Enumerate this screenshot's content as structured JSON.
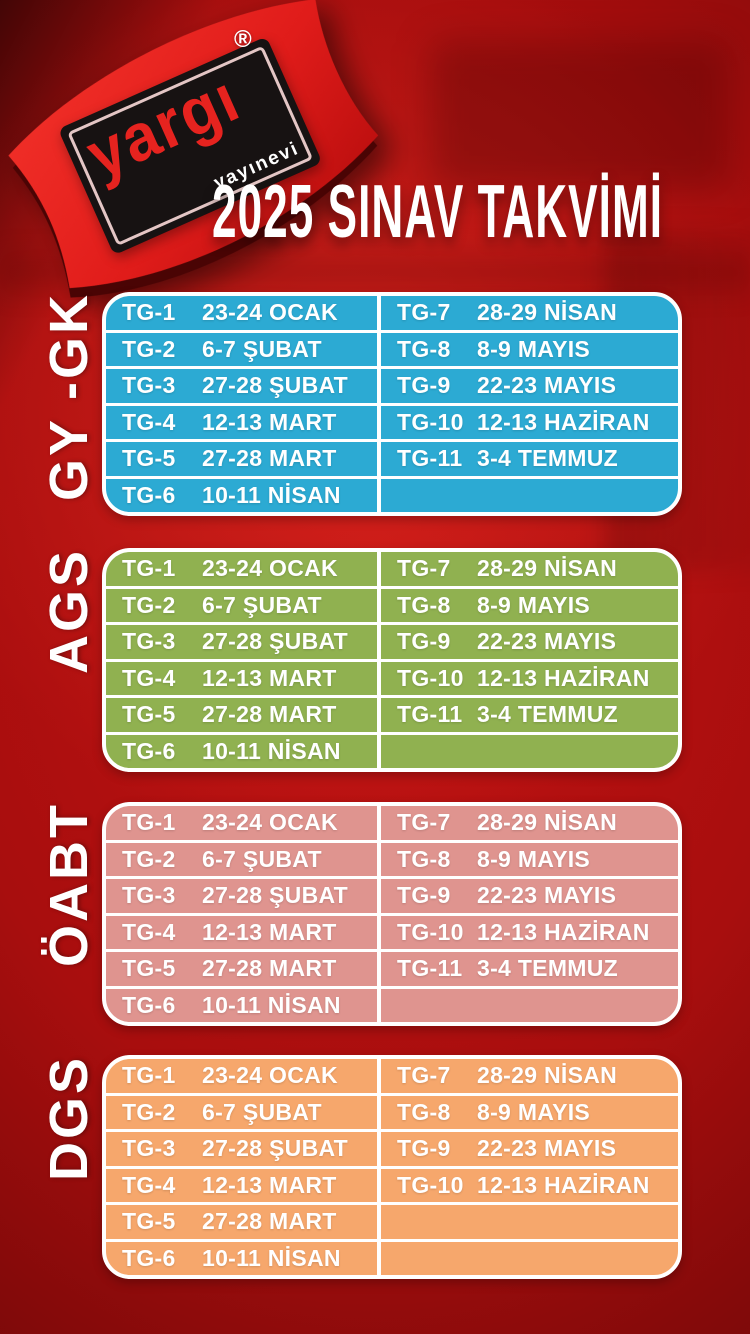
{
  "page": {
    "title": "2025 SINAV TAKVİMİ"
  },
  "logo": {
    "brand": "yargı",
    "subtitle": "yayınevi",
    "registered": "®"
  },
  "colors": {
    "background_red": "#a80e0e",
    "logo_red": "#e6231f",
    "table_blue": "#2caad3",
    "table_green": "#90b150",
    "table_salmon": "#df948f",
    "table_orange": "#f6a76c",
    "grid_white": "#ffffff"
  },
  "sections": [
    {
      "id": "gy-gk",
      "label": "GY -GK",
      "color": "#2caad3",
      "left_rows": [
        {
          "tg": "TG-1",
          "date": "23-24 OCAK"
        },
        {
          "tg": "TG-2",
          "date": "6-7 ŞUBAT"
        },
        {
          "tg": "TG-3",
          "date": "27-28 ŞUBAT"
        },
        {
          "tg": "TG-4",
          "date": "12-13 MART"
        },
        {
          "tg": "TG-5",
          "date": "27-28 MART"
        },
        {
          "tg": "TG-6",
          "date": "10-11 NİSAN"
        }
      ],
      "right_rows": [
        {
          "tg": "TG-7",
          "date": "28-29 NİSAN"
        },
        {
          "tg": "TG-8",
          "date": "8-9 MAYIS"
        },
        {
          "tg": "TG-9",
          "date": "22-23 MAYIS"
        },
        {
          "tg": "TG-10",
          "date": "12-13 HAZİRAN"
        },
        {
          "tg": "TG-11",
          "date": "3-4 TEMMUZ"
        },
        {
          "tg": "",
          "date": ""
        }
      ]
    },
    {
      "id": "ags",
      "label": "AGS",
      "color": "#90b150",
      "left_rows": [
        {
          "tg": "TG-1",
          "date": "23-24 OCAK"
        },
        {
          "tg": "TG-2",
          "date": "6-7 ŞUBAT"
        },
        {
          "tg": "TG-3",
          "date": "27-28 ŞUBAT"
        },
        {
          "tg": "TG-4",
          "date": "12-13 MART"
        },
        {
          "tg": "TG-5",
          "date": "27-28 MART"
        },
        {
          "tg": "TG-6",
          "date": "10-11 NİSAN"
        }
      ],
      "right_rows": [
        {
          "tg": "TG-7",
          "date": "28-29 NİSAN"
        },
        {
          "tg": "TG-8",
          "date": "8-9 MAYIS"
        },
        {
          "tg": "TG-9",
          "date": "22-23 MAYIS"
        },
        {
          "tg": "TG-10",
          "date": "12-13 HAZİRAN"
        },
        {
          "tg": "TG-11",
          "date": "3-4 TEMMUZ"
        },
        {
          "tg": "",
          "date": ""
        }
      ]
    },
    {
      "id": "oabt",
      "label": "ÖABT",
      "color": "#df948f",
      "left_rows": [
        {
          "tg": "TG-1",
          "date": "23-24 OCAK"
        },
        {
          "tg": "TG-2",
          "date": "6-7 ŞUBAT"
        },
        {
          "tg": "TG-3",
          "date": "27-28 ŞUBAT"
        },
        {
          "tg": "TG-4",
          "date": "12-13 MART"
        },
        {
          "tg": "TG-5",
          "date": "27-28 MART"
        },
        {
          "tg": "TG-6",
          "date": "10-11 NİSAN"
        }
      ],
      "right_rows": [
        {
          "tg": "TG-7",
          "date": "28-29 NİSAN"
        },
        {
          "tg": "TG-8",
          "date": "8-9 MAYIS"
        },
        {
          "tg": "TG-9",
          "date": "22-23 MAYIS"
        },
        {
          "tg": "TG-10",
          "date": "12-13 HAZİRAN"
        },
        {
          "tg": "TG-11",
          "date": "3-4 TEMMUZ"
        },
        {
          "tg": "",
          "date": ""
        }
      ]
    },
    {
      "id": "dgs",
      "label": "DGS",
      "color": "#f6a76c",
      "left_rows": [
        {
          "tg": "TG-1",
          "date": "23-24 OCAK"
        },
        {
          "tg": "TG-2",
          "date": "6-7 ŞUBAT"
        },
        {
          "tg": "TG-3",
          "date": "27-28 ŞUBAT"
        },
        {
          "tg": "TG-4",
          "date": "12-13 MART"
        },
        {
          "tg": "TG-5",
          "date": "27-28 MART"
        },
        {
          "tg": "TG-6",
          "date": "10-11 NİSAN"
        }
      ],
      "right_rows": [
        {
          "tg": "TG-7",
          "date": "28-29 NİSAN"
        },
        {
          "tg": "TG-8",
          "date": "8-9 MAYIS"
        },
        {
          "tg": "TG-9",
          "date": "22-23 MAYIS"
        },
        {
          "tg": "TG-10",
          "date": "12-13 HAZİRAN"
        },
        {
          "tg": "",
          "date": ""
        },
        {
          "tg": "",
          "date": ""
        }
      ]
    }
  ]
}
